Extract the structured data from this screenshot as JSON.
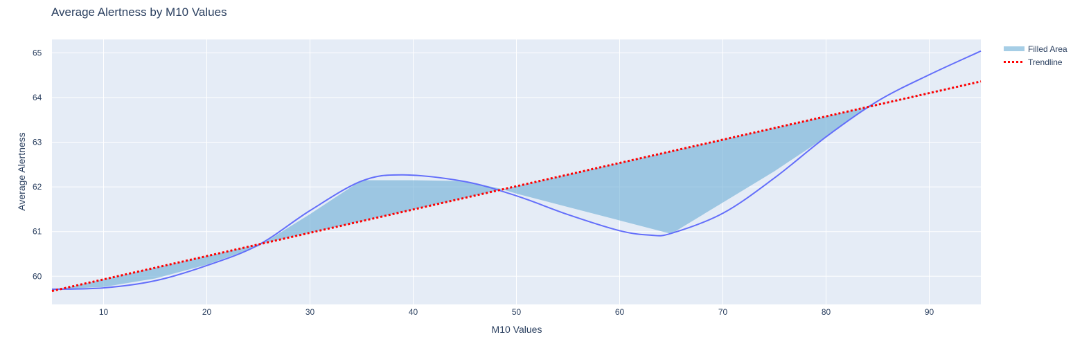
{
  "chart_data": {
    "type": "line",
    "title": "Average Alertness by M10 Values",
    "xlabel": "M10 Values",
    "ylabel": "Average Alertness",
    "xlim": [
      5,
      95
    ],
    "ylim": [
      59.37,
      65.3
    ],
    "x_ticks": [
      10,
      20,
      30,
      40,
      50,
      60,
      70,
      80,
      90
    ],
    "y_ticks": [
      60,
      61,
      62,
      63,
      64,
      65
    ],
    "grid": true,
    "legend_position": "top-right",
    "series": [
      {
        "name": "Filled Area",
        "kind": "area",
        "x": [
          5,
          10,
          15,
          20,
          25,
          30,
          35,
          40,
          45,
          48.3,
          50,
          55,
          60,
          65,
          70,
          75,
          80,
          84,
          85,
          90,
          95
        ],
        "values": [
          59.71,
          59.76,
          59.95,
          60.26,
          60.67,
          61.39,
          62.15,
          62.15,
          62.13,
          61.97,
          61.85,
          61.55,
          61.25,
          60.95,
          61.65,
          62.35,
          63.12,
          63.77,
          63.83,
          64.09,
          64.36
        ],
        "color": "#6baed6"
      },
      {
        "name": "",
        "kind": "line",
        "x": [
          5,
          10,
          15,
          20,
          25,
          30,
          35,
          39,
          45,
          50,
          55,
          60,
          63,
          65,
          70,
          75,
          80,
          85,
          90,
          95
        ],
        "values": [
          59.71,
          59.74,
          59.9,
          60.24,
          60.7,
          61.47,
          62.13,
          62.27,
          62.12,
          61.8,
          61.38,
          61.02,
          60.92,
          60.96,
          61.41,
          62.2,
          63.12,
          63.92,
          64.51,
          65.04
        ],
        "color": "#636efa"
      },
      {
        "name": "Trendline",
        "kind": "line",
        "x": [
          5,
          95
        ],
        "values": [
          59.67,
          64.36
        ],
        "color": "#ff0000",
        "dash": "dot"
      }
    ]
  }
}
